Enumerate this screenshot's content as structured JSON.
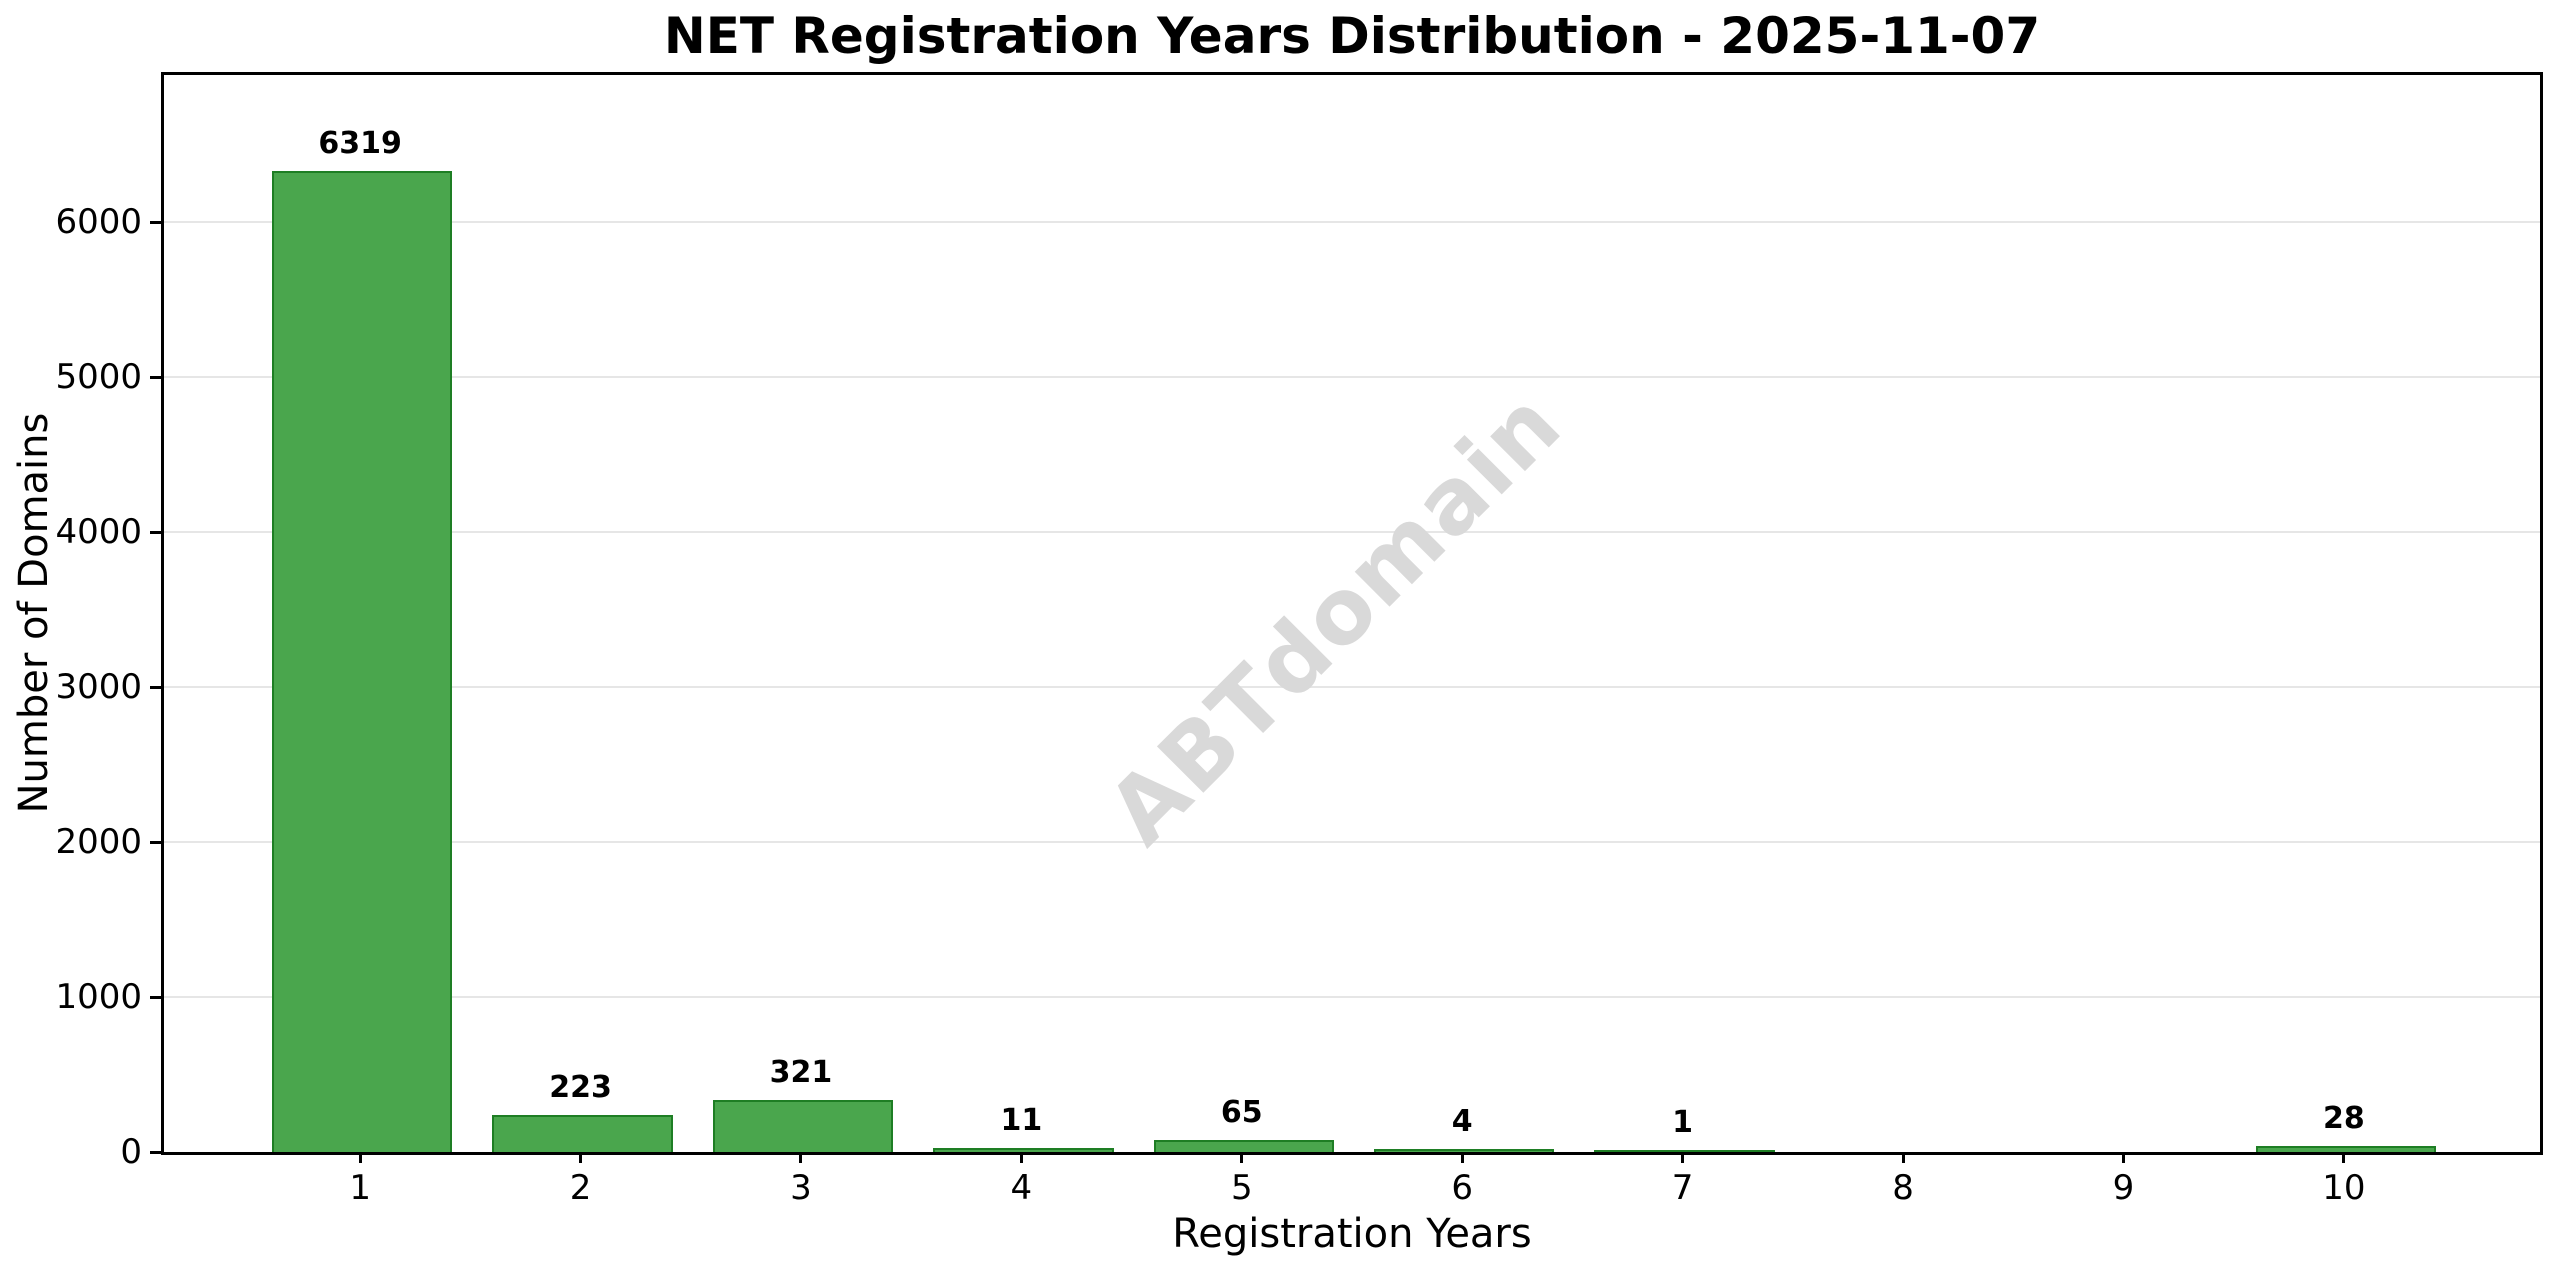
{
  "chart_data": {
    "type": "bar",
    "title": "NET Registration Years Distribution - 2025-11-07",
    "xlabel": "Registration Years",
    "ylabel": "Number of Domains",
    "categories": [
      "1",
      "2",
      "3",
      "4",
      "5",
      "6",
      "7",
      "8",
      "9",
      "10"
    ],
    "values": [
      6319,
      223,
      321,
      11,
      65,
      4,
      1,
      0,
      0,
      28
    ],
    "bar_labels": [
      "6319",
      "223",
      "321",
      "11",
      "65",
      "4",
      "1",
      "",
      "",
      "28"
    ],
    "y_ticks": [
      0,
      1000,
      2000,
      3000,
      4000,
      5000,
      6000
    ],
    "y_tick_labels": [
      "0",
      "1000",
      "2000",
      "3000",
      "4000",
      "5000",
      "6000"
    ],
    "ylim": [
      0,
      6950
    ],
    "xlim": [
      0.11,
      10.89
    ],
    "bar_width": 0.8,
    "grid": "horizontal",
    "legend_position": "none",
    "watermark": "ABTdomain",
    "colors": {
      "bar_fill": "#4aa64d",
      "bar_edge": "#1e7e24",
      "gridline": "#e6e6e6",
      "watermark": "#d9d9d9",
      "text": "#000000",
      "axes": "#000000",
      "background": "#ffffff"
    }
  }
}
